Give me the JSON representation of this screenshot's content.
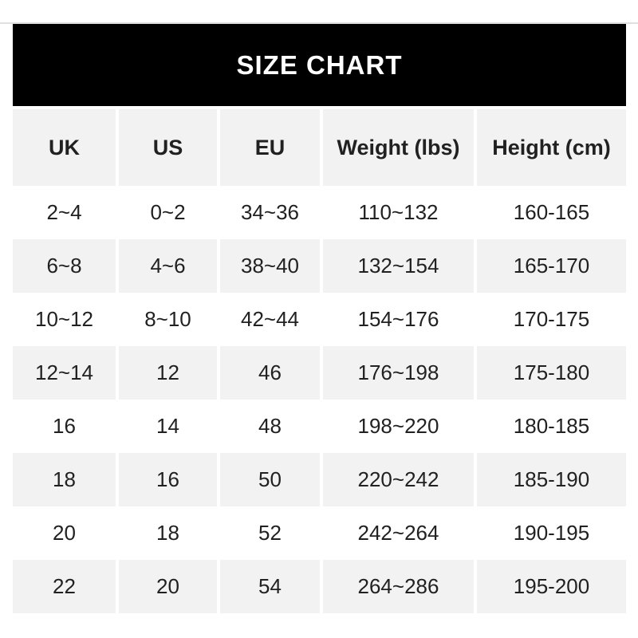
{
  "title": "SIZE CHART",
  "chart_data": {
    "type": "table",
    "title": "SIZE CHART",
    "columns": [
      "UK",
      "US",
      "EU",
      "Weight (lbs)",
      "Height (cm)"
    ],
    "rows": [
      [
        "2~4",
        "0~2",
        "34~36",
        "110~132",
        "160-165"
      ],
      [
        "6~8",
        "4~6",
        "38~40",
        "132~154",
        "165-170"
      ],
      [
        "10~12",
        "8~10",
        "42~44",
        "154~176",
        "170-175"
      ],
      [
        "12~14",
        "12",
        "46",
        "176~198",
        "175-180"
      ],
      [
        "16",
        "14",
        "48",
        "198~220",
        "180-185"
      ],
      [
        "18",
        "16",
        "50",
        "220~242",
        "185-190"
      ],
      [
        "20",
        "18",
        "52",
        "242~264",
        "190-195"
      ],
      [
        "22",
        "20",
        "54",
        "264~286",
        "195-200"
      ]
    ],
    "layout": {
      "header_row": true,
      "alternating_row_shading": true,
      "grid": false
    }
  },
  "colors": {
    "page_bg": "#ffffff",
    "title_bar_bg": "#000000",
    "title_bar_text": "#ffffff",
    "row_alt_bg": "#f2f2f2",
    "cell_text": "#212121",
    "top_rule": "#e0e0e0"
  }
}
